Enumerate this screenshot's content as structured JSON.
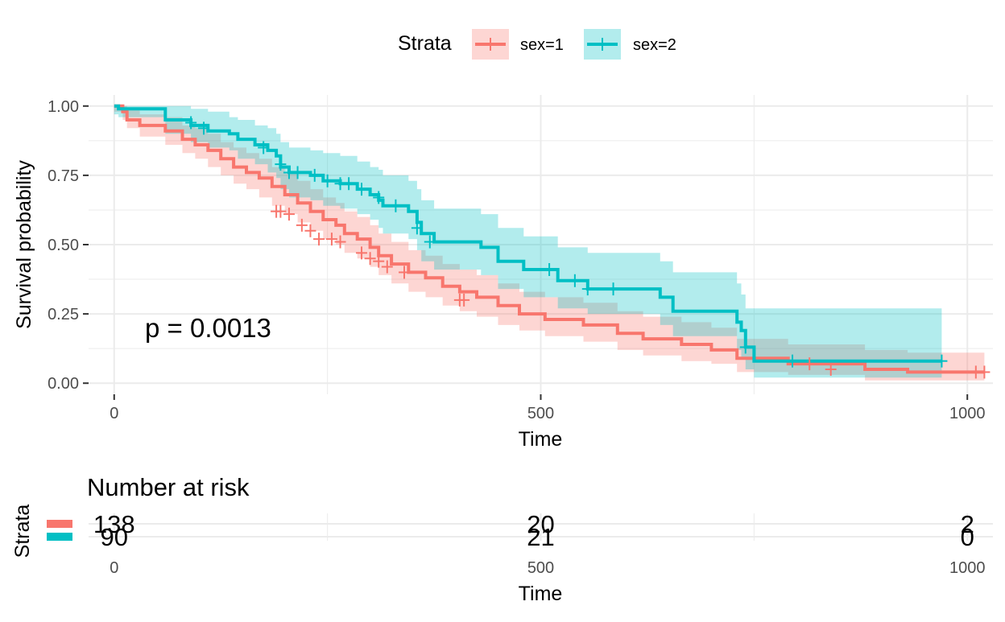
{
  "chart_data": [
    {
      "type": "line",
      "subtype": "kaplan-meier",
      "title": "",
      "xlabel": "Time",
      "ylabel": "Survival probability",
      "xlim": [
        -30,
        1030
      ],
      "ylim": [
        -0.04,
        1.04
      ],
      "x_ticks": [
        0,
        500,
        1000
      ],
      "x_tick_labels": [
        "0",
        "500",
        "1000"
      ],
      "y_ticks": [
        0,
        0.25,
        0.5,
        0.75,
        1.0
      ],
      "y_tick_labels": [
        "0.00",
        "0.25",
        "0.50",
        "0.75",
        "1.00"
      ],
      "grid": true,
      "legend": {
        "title": "Strata",
        "placement": "top"
      },
      "annotation": "p = 0.0013",
      "series": [
        {
          "name": "sex=1",
          "color": "#F8766D",
          "band_color": "#F8766D",
          "steps": [
            [
              0,
              1.0
            ],
            [
              10,
              0.98
            ],
            [
              15,
              0.95
            ],
            [
              30,
              0.93
            ],
            [
              60,
              0.91
            ],
            [
              80,
              0.88
            ],
            [
              95,
              0.86
            ],
            [
              110,
              0.84
            ],
            [
              125,
              0.81
            ],
            [
              140,
              0.78
            ],
            [
              155,
              0.76
            ],
            [
              170,
              0.74
            ],
            [
              185,
              0.71
            ],
            [
              200,
              0.68
            ],
            [
              215,
              0.65
            ],
            [
              230,
              0.62
            ],
            [
              245,
              0.59
            ],
            [
              260,
              0.57
            ],
            [
              270,
              0.54
            ],
            [
              285,
              0.52
            ],
            [
              300,
              0.49
            ],
            [
              310,
              0.46
            ],
            [
              325,
              0.43
            ],
            [
              345,
              0.4
            ],
            [
              365,
              0.38
            ],
            [
              385,
              0.35
            ],
            [
              405,
              0.33
            ],
            [
              425,
              0.31
            ],
            [
              450,
              0.28
            ],
            [
              475,
              0.25
            ],
            [
              505,
              0.23
            ],
            [
              550,
              0.21
            ],
            [
              590,
              0.18
            ],
            [
              620,
              0.16
            ],
            [
              665,
              0.14
            ],
            [
              700,
              0.12
            ],
            [
              730,
              0.09
            ],
            [
              790,
              0.07
            ],
            [
              880,
              0.05
            ],
            [
              930,
              0.04
            ],
            [
              1020,
              0.04
            ]
          ],
          "lower": [
            [
              0,
              0.98
            ],
            [
              10,
              0.95
            ],
            [
              15,
              0.92
            ],
            [
              30,
              0.89
            ],
            [
              60,
              0.86
            ],
            [
              80,
              0.83
            ],
            [
              95,
              0.81
            ],
            [
              110,
              0.78
            ],
            [
              125,
              0.75
            ],
            [
              140,
              0.72
            ],
            [
              155,
              0.7
            ],
            [
              170,
              0.67
            ],
            [
              185,
              0.64
            ],
            [
              200,
              0.61
            ],
            [
              215,
              0.58
            ],
            [
              230,
              0.55
            ],
            [
              245,
              0.52
            ],
            [
              260,
              0.5
            ],
            [
              270,
              0.47
            ],
            [
              285,
              0.45
            ],
            [
              300,
              0.42
            ],
            [
              310,
              0.39
            ],
            [
              325,
              0.36
            ],
            [
              345,
              0.33
            ],
            [
              365,
              0.31
            ],
            [
              385,
              0.28
            ],
            [
              405,
              0.26
            ],
            [
              425,
              0.24
            ],
            [
              450,
              0.21
            ],
            [
              475,
              0.19
            ],
            [
              505,
              0.17
            ],
            [
              550,
              0.15
            ],
            [
              590,
              0.12
            ],
            [
              620,
              0.1
            ],
            [
              665,
              0.08
            ],
            [
              700,
              0.07
            ],
            [
              730,
              0.04
            ],
            [
              790,
              0.03
            ],
            [
              880,
              0.01
            ],
            [
              930,
              0.01
            ],
            [
              1020,
              0.01
            ]
          ],
          "upper": [
            [
              0,
              1.0
            ],
            [
              10,
              1.0
            ],
            [
              15,
              0.99
            ],
            [
              30,
              0.97
            ],
            [
              60,
              0.96
            ],
            [
              80,
              0.93
            ],
            [
              95,
              0.92
            ],
            [
              110,
              0.9
            ],
            [
              125,
              0.87
            ],
            [
              140,
              0.85
            ],
            [
              155,
              0.83
            ],
            [
              170,
              0.81
            ],
            [
              185,
              0.78
            ],
            [
              200,
              0.76
            ],
            [
              215,
              0.73
            ],
            [
              230,
              0.7
            ],
            [
              245,
              0.67
            ],
            [
              260,
              0.65
            ],
            [
              270,
              0.62
            ],
            [
              285,
              0.6
            ],
            [
              300,
              0.57
            ],
            [
              310,
              0.54
            ],
            [
              325,
              0.51
            ],
            [
              345,
              0.48
            ],
            [
              365,
              0.46
            ],
            [
              385,
              0.43
            ],
            [
              405,
              0.41
            ],
            [
              425,
              0.39
            ],
            [
              450,
              0.36
            ],
            [
              475,
              0.33
            ],
            [
              505,
              0.31
            ],
            [
              550,
              0.29
            ],
            [
              590,
              0.26
            ],
            [
              620,
              0.24
            ],
            [
              665,
              0.22
            ],
            [
              700,
              0.2
            ],
            [
              730,
              0.16
            ],
            [
              790,
              0.14
            ],
            [
              880,
              0.12
            ],
            [
              930,
              0.11
            ],
            [
              1020,
              0.11
            ]
          ],
          "censored": [
            [
              190,
              0.62
            ],
            [
              195,
              0.62
            ],
            [
              205,
              0.61
            ],
            [
              220,
              0.57
            ],
            [
              230,
              0.55
            ],
            [
              240,
              0.52
            ],
            [
              255,
              0.52
            ],
            [
              265,
              0.51
            ],
            [
              290,
              0.47
            ],
            [
              300,
              0.45
            ],
            [
              310,
              0.44
            ],
            [
              320,
              0.42
            ],
            [
              340,
              0.4
            ],
            [
              405,
              0.3
            ],
            [
              410,
              0.3
            ],
            [
              815,
              0.07
            ],
            [
              840,
              0.05
            ],
            [
              1010,
              0.04
            ],
            [
              1020,
              0.04
            ]
          ]
        },
        {
          "name": "sex=2",
          "color": "#00BFC4",
          "band_color": "#00BFC4",
          "steps": [
            [
              0,
              1.0
            ],
            [
              5,
              0.99
            ],
            [
              60,
              0.95
            ],
            [
              90,
              0.93
            ],
            [
              110,
              0.91
            ],
            [
              135,
              0.9
            ],
            [
              145,
              0.88
            ],
            [
              165,
              0.86
            ],
            [
              180,
              0.84
            ],
            [
              190,
              0.82
            ],
            [
              195,
              0.78
            ],
            [
              205,
              0.76
            ],
            [
              230,
              0.75
            ],
            [
              245,
              0.73
            ],
            [
              265,
              0.72
            ],
            [
              285,
              0.7
            ],
            [
              300,
              0.68
            ],
            [
              310,
              0.66
            ],
            [
              315,
              0.64
            ],
            [
              345,
              0.62
            ],
            [
              355,
              0.58
            ],
            [
              360,
              0.54
            ],
            [
              375,
              0.51
            ],
            [
              430,
              0.49
            ],
            [
              450,
              0.44
            ],
            [
              480,
              0.41
            ],
            [
              520,
              0.37
            ],
            [
              555,
              0.34
            ],
            [
              640,
              0.31
            ],
            [
              655,
              0.26
            ],
            [
              730,
              0.22
            ],
            [
              735,
              0.19
            ],
            [
              740,
              0.13
            ],
            [
              750,
              0.08
            ],
            [
              970,
              0.08
            ]
          ],
          "lower": [
            [
              0,
              0.97
            ],
            [
              5,
              0.96
            ],
            [
              60,
              0.9
            ],
            [
              90,
              0.87
            ],
            [
              110,
              0.85
            ],
            [
              135,
              0.84
            ],
            [
              145,
              0.81
            ],
            [
              165,
              0.79
            ],
            [
              180,
              0.76
            ],
            [
              190,
              0.74
            ],
            [
              195,
              0.7
            ],
            [
              205,
              0.67
            ],
            [
              230,
              0.66
            ],
            [
              245,
              0.64
            ],
            [
              265,
              0.63
            ],
            [
              285,
              0.61
            ],
            [
              300,
              0.59
            ],
            [
              310,
              0.56
            ],
            [
              315,
              0.54
            ],
            [
              345,
              0.52
            ],
            [
              355,
              0.48
            ],
            [
              360,
              0.44
            ],
            [
              375,
              0.41
            ],
            [
              430,
              0.39
            ],
            [
              450,
              0.34
            ],
            [
              480,
              0.31
            ],
            [
              520,
              0.27
            ],
            [
              555,
              0.25
            ],
            [
              640,
              0.21
            ],
            [
              655,
              0.17
            ],
            [
              730,
              0.12
            ],
            [
              735,
              0.09
            ],
            [
              740,
              0.05
            ],
            [
              750,
              0.02
            ],
            [
              970,
              0.02
            ]
          ],
          "upper": [
            [
              0,
              1.0
            ],
            [
              5,
              1.0
            ],
            [
              60,
              1.0
            ],
            [
              90,
              0.99
            ],
            [
              110,
              0.98
            ],
            [
              135,
              0.96
            ],
            [
              145,
              0.95
            ],
            [
              165,
              0.93
            ],
            [
              180,
              0.92
            ],
            [
              190,
              0.9
            ],
            [
              195,
              0.87
            ],
            [
              205,
              0.85
            ],
            [
              230,
              0.84
            ],
            [
              245,
              0.83
            ],
            [
              265,
              0.82
            ],
            [
              285,
              0.8
            ],
            [
              300,
              0.78
            ],
            [
              310,
              0.77
            ],
            [
              315,
              0.75
            ],
            [
              345,
              0.73
            ],
            [
              355,
              0.7
            ],
            [
              360,
              0.66
            ],
            [
              375,
              0.63
            ],
            [
              430,
              0.61
            ],
            [
              450,
              0.56
            ],
            [
              480,
              0.53
            ],
            [
              520,
              0.49
            ],
            [
              555,
              0.47
            ],
            [
              640,
              0.44
            ],
            [
              655,
              0.4
            ],
            [
              730,
              0.36
            ],
            [
              735,
              0.32
            ],
            [
              740,
              0.27
            ],
            [
              750,
              0.27
            ],
            [
              970,
              0.27
            ]
          ],
          "censored": [
            [
              90,
              0.94
            ],
            [
              105,
              0.92
            ],
            [
              175,
              0.85
            ],
            [
              195,
              0.79
            ],
            [
              205,
              0.76
            ],
            [
              215,
              0.76
            ],
            [
              235,
              0.75
            ],
            [
              250,
              0.73
            ],
            [
              265,
              0.72
            ],
            [
              275,
              0.72
            ],
            [
              290,
              0.7
            ],
            [
              310,
              0.67
            ],
            [
              330,
              0.64
            ],
            [
              355,
              0.56
            ],
            [
              370,
              0.51
            ],
            [
              510,
              0.41
            ],
            [
              540,
              0.37
            ],
            [
              555,
              0.34
            ],
            [
              585,
              0.34
            ],
            [
              740,
              0.13
            ],
            [
              795,
              0.08
            ],
            [
              970,
              0.08
            ]
          ]
        }
      ]
    },
    {
      "type": "table",
      "title": "Number at risk",
      "xlabel": "Time",
      "ylabel": "Strata",
      "xlim": [
        -30,
        1030
      ],
      "x_ticks": [
        0,
        500,
        1000
      ],
      "x_tick_labels": [
        "0",
        "500",
        "1000"
      ],
      "rows": [
        {
          "name": "sex=1",
          "color": "#F8766D",
          "values": [
            "138",
            "20",
            "2"
          ]
        },
        {
          "name": "sex=2",
          "color": "#00BFC4",
          "values": [
            "90",
            "21",
            "0"
          ]
        }
      ]
    }
  ]
}
